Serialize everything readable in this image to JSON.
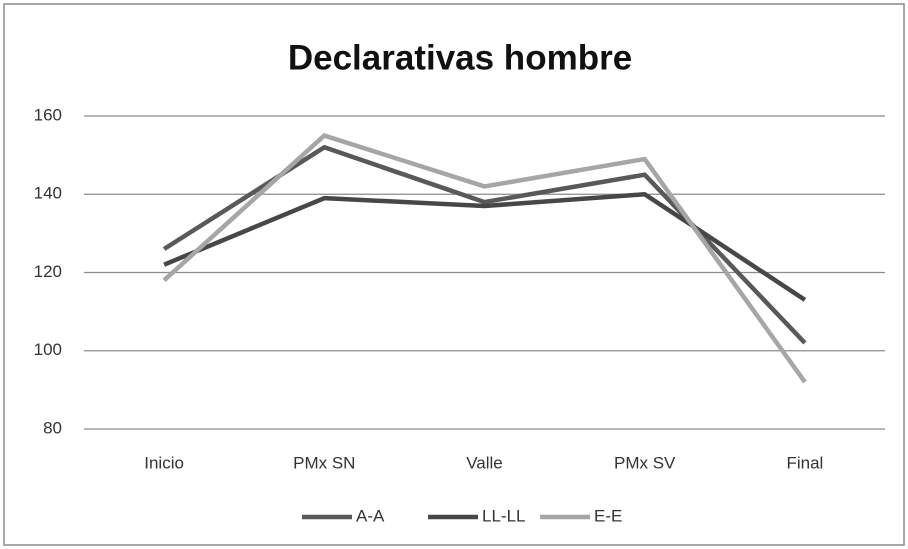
{
  "chart_data": {
    "type": "line",
    "title": "Declarativas hombre",
    "categories": [
      "Inicio",
      "PMx SN",
      "Valle",
      "PMx SV",
      "Final"
    ],
    "series": [
      {
        "name": "A-A",
        "color": "#595959",
        "values": [
          126,
          152,
          138,
          145,
          102
        ]
      },
      {
        "name": "LL-LL",
        "color": "#474747",
        "values": [
          122,
          139,
          137,
          140,
          113
        ]
      },
      {
        "name": "E-E",
        "color": "#a6a6a6",
        "values": [
          118,
          155,
          142,
          149,
          92
        ]
      }
    ],
    "ylim": [
      80,
      160
    ],
    "yticks": [
      80,
      100,
      120,
      140,
      160
    ],
    "grid": true,
    "legend": "bottom"
  }
}
